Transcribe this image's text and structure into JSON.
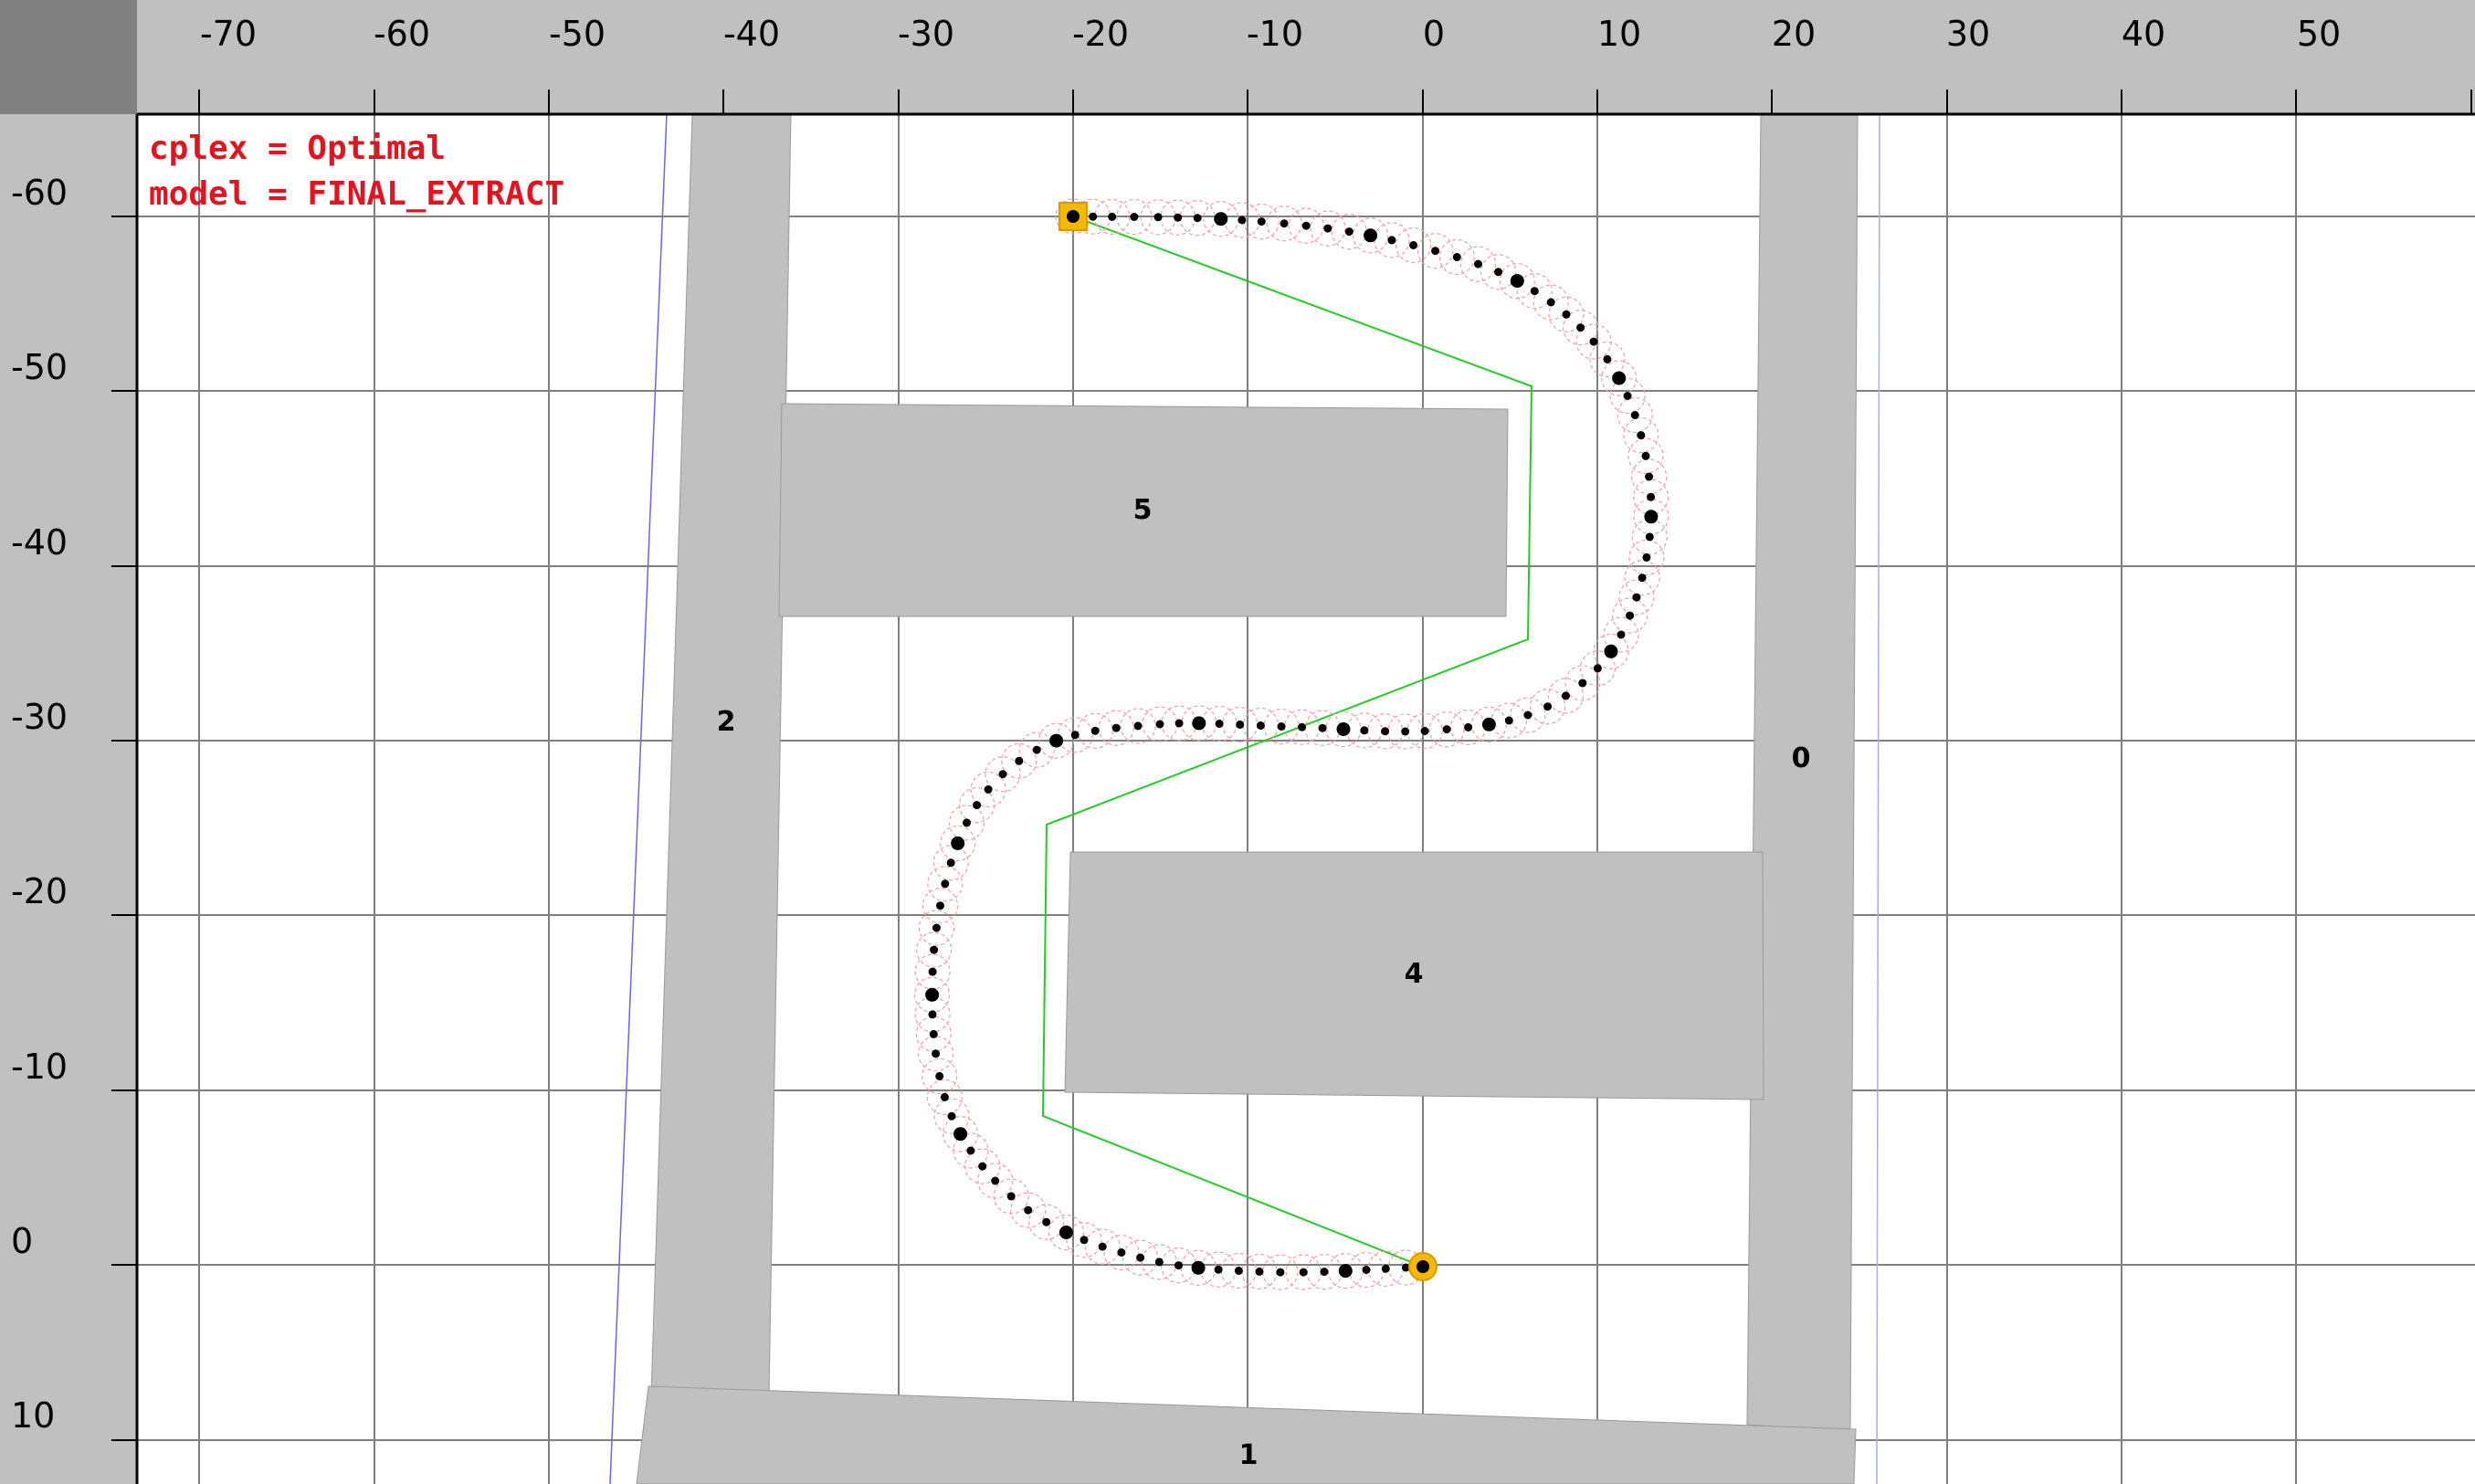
{
  "status": {
    "cplex_line": "cplex = Optimal",
    "model_line": "model = FINAL_EXTRACT"
  },
  "axes": {
    "x_ticks": [
      "-70",
      "-60",
      "-50",
      "-40",
      "-30",
      "-20",
      "-10",
      "0",
      "10",
      "20",
      "30",
      "40",
      "50"
    ],
    "y_ticks": [
      "-60",
      "-50",
      "-40",
      "-30",
      "-20",
      "-10",
      "0",
      "10"
    ]
  },
  "obstacles": [
    {
      "id": "5",
      "label": "5"
    },
    {
      "id": "2",
      "label": "2"
    },
    {
      "id": "4",
      "label": "4"
    },
    {
      "id": "0",
      "label": "0"
    },
    {
      "id": "1",
      "label": "1"
    }
  ],
  "colors": {
    "ruler": "#c0c0c0",
    "ruler_corner": "#808080",
    "grid": "#808080",
    "obstacle": "#c0c0c0",
    "status_text": "#e4131e",
    "path_dots": "#000000",
    "footprint": "#f4a0a0",
    "waypoint_line": "#22cc22",
    "endpoint_marker": "#f5b800",
    "boundary_line": "#6666ee"
  }
}
